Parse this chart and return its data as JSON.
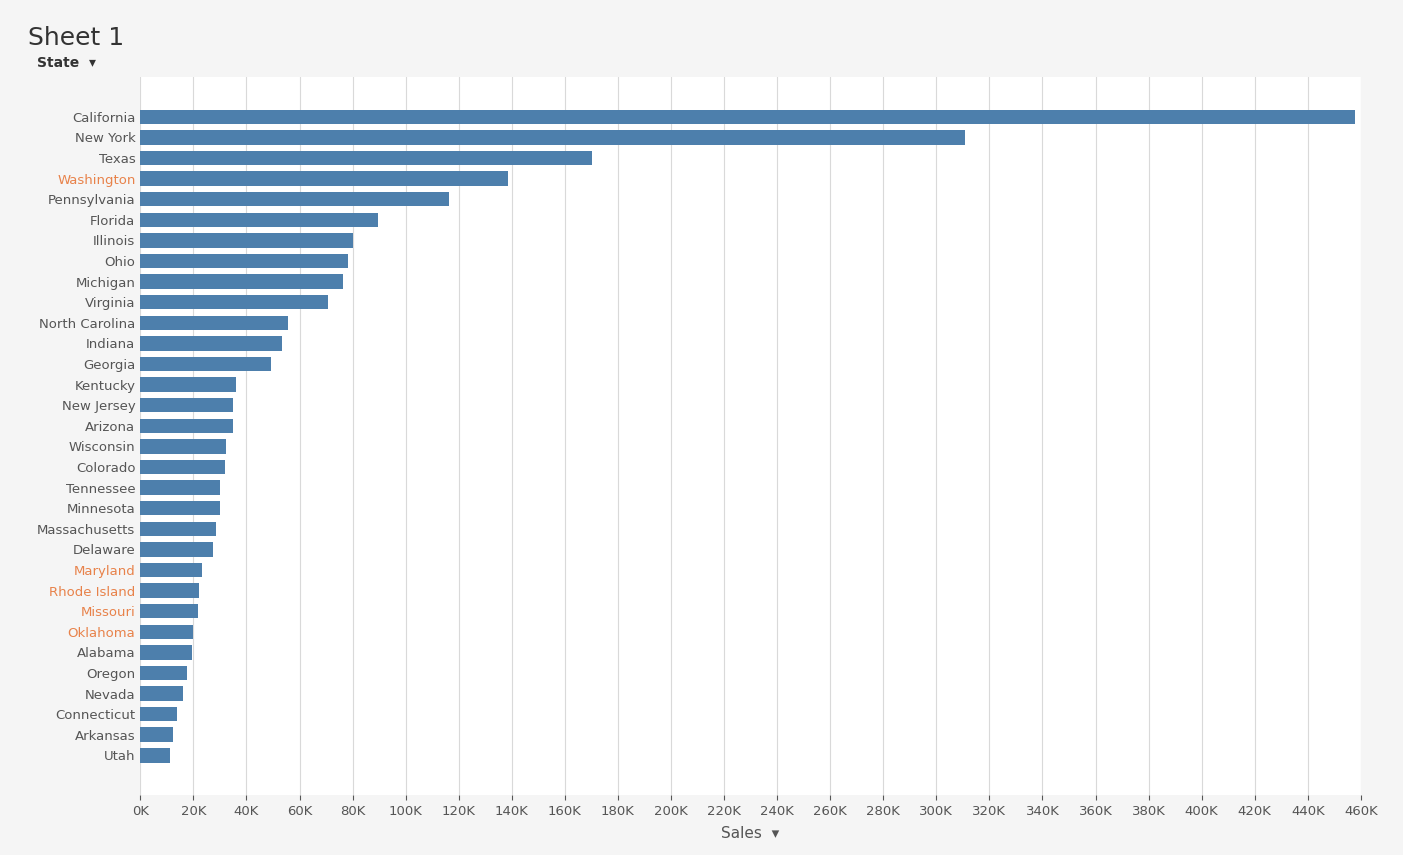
{
  "title": "Sheet 1",
  "xlabel": "Sales",
  "ylabel_label": "State",
  "bar_color": "#4d7fac",
  "background_color": "#ffffff",
  "plot_bg_color": "#ffffff",
  "grid_color": "#d9d9d9",
  "states": [
    "California",
    "New York",
    "Texas",
    "Washington",
    "Pennsylvania",
    "Florida",
    "Illinois",
    "Ohio",
    "Michigan",
    "Virginia",
    "North Carolina",
    "Indiana",
    "Georgia",
    "Kentucky",
    "New Jersey",
    "Arizona",
    "Wisconsin",
    "Colorado",
    "Tennessee",
    "Minnesota",
    "Massachusetts",
    "Delaware",
    "Maryland",
    "Rhode Island",
    "Missouri",
    "Oklahoma",
    "Alabama",
    "Oregon",
    "Nevada",
    "Connecticut",
    "Arkansas",
    "Utah"
  ],
  "values": [
    457688,
    310876,
    170188,
    138641,
    116512,
    89474,
    80166,
    78258,
    76270,
    70637,
    55604,
    53555,
    49103,
    36127,
    35014,
    35002,
    32114,
    32000,
    30058,
    29877,
    28640,
    27453,
    23132,
    22200,
    21822,
    19888,
    19511,
    17431,
    16045,
    13915,
    12137,
    11069
  ],
  "xlim": [
    0,
    460000
  ],
  "xtick_step": 20000,
  "title_color": "#333333",
  "axis_label_color": "#555555",
  "tick_label_color": "#555555",
  "state_label_color_default": "#555555",
  "state_label_color_highlight": "#e8824a",
  "highlight_states": [
    "Washington",
    "Maryland",
    "Rhode Island",
    "Missouri",
    "Oklahoma"
  ],
  "title_fontsize": 18,
  "axis_label_fontsize": 11,
  "tick_fontsize": 9.5,
  "state_label_fontsize": 9.5,
  "bar_height": 0.7
}
